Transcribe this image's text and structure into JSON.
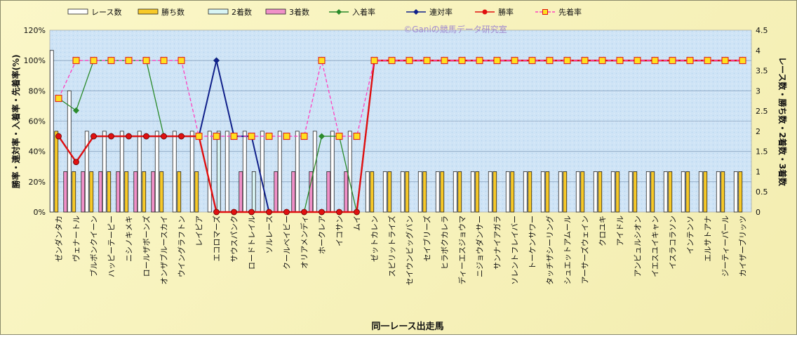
{
  "chart_data": {
    "type": "bar+line",
    "watermark": "©Ganiの競馬データ研究室",
    "xlabel": "同一レース出走馬",
    "ylabel_left": "勝率・連対率・入着率・先着率(%)",
    "ylabel_right": "レース数・勝ち数・2着数・3着数",
    "y_left": {
      "min": 0,
      "max": 120,
      "ticks": [
        "0%",
        "20%",
        "40%",
        "60%",
        "80%",
        "100%",
        "120%"
      ]
    },
    "y_right": {
      "min": 0,
      "max": 4.5,
      "ticks": [
        "0",
        "0.5",
        "1",
        "1.5",
        "2",
        "2.5",
        "3",
        "3.5",
        "4",
        "4.5"
      ]
    },
    "grid": true,
    "legend_position": "top",
    "categories": [
      "ゼンダンタカ",
      "ヴェナートル",
      "ブルボンクイーン",
      "ハッピーテーピー",
      "ニシノキメキ",
      "ロールザボーンズ",
      "オンザブルースカイ",
      "ウイングラフトン",
      "レイピア",
      "エコロマーズ",
      "サウスパンク",
      "ロードトレイル",
      "ソルレース",
      "クールベイビー",
      "オリアメンディ",
      "ホークレア",
      "イコサン",
      "ムイ",
      "ゼットカレン",
      "スピリットライズ",
      "セイウンビッグバン",
      "セイブリーズ",
      "ヒラボクカレラ",
      "ディーエスジョウマ",
      "ニジョウダンサー",
      "サンナイアガラ",
      "ソレントフレイバー",
      "トーケンサワー",
      "タッチザシーリング",
      "シュエットアムール",
      "アーサーズウェイン",
      "クロユキ",
      "アイドル",
      "アンビュルシオン",
      "イエスユイキャン",
      "イスラコラソン",
      "インテンソ",
      "エルサトアナ",
      "ジーティーパール",
      "カイザーブリッツ"
    ],
    "series": [
      {
        "name": "レース数",
        "kind": "bar",
        "axis": "right",
        "color": "#ffffff",
        "values": [
          4,
          3,
          2,
          2,
          2,
          2,
          2,
          2,
          2,
          2,
          2,
          2,
          2,
          2,
          2,
          2,
          2,
          2,
          1,
          1,
          1,
          1,
          1,
          1,
          1,
          1,
          1,
          1,
          1,
          1,
          1,
          1,
          1,
          1,
          1,
          1,
          1,
          1,
          1,
          1
        ]
      },
      {
        "name": "勝ち数",
        "kind": "bar",
        "axis": "right",
        "color": "#f7c928",
        "values": [
          2,
          1,
          1,
          1,
          1,
          1,
          1,
          1,
          1,
          0,
          0,
          0,
          0,
          0,
          0,
          0,
          0,
          0,
          1,
          1,
          1,
          1,
          1,
          1,
          1,
          1,
          1,
          1,
          1,
          1,
          1,
          1,
          1,
          1,
          1,
          1,
          1,
          1,
          1,
          1
        ]
      },
      {
        "name": "2着数",
        "kind": "bar",
        "axis": "right",
        "color": "#d8f4f4",
        "values": [
          0,
          0,
          0,
          0,
          0,
          0,
          0,
          0,
          0,
          2,
          0,
          1,
          0,
          0,
          0,
          0,
          0,
          0,
          0,
          0,
          0,
          0,
          0,
          0,
          0,
          0,
          0,
          0,
          0,
          0,
          0,
          0,
          0,
          0,
          0,
          0,
          0,
          0,
          0,
          0
        ]
      },
      {
        "name": "3着数",
        "kind": "bar",
        "axis": "right",
        "color": "#f090c8",
        "values": [
          1,
          1,
          1,
          1,
          1,
          1,
          0,
          0,
          0,
          0,
          1,
          0,
          1,
          1,
          1,
          1,
          1,
          0,
          0,
          0,
          0,
          0,
          0,
          0,
          0,
          0,
          0,
          0,
          0,
          0,
          0,
          0,
          0,
          0,
          0,
          0,
          0,
          0,
          0,
          0
        ]
      },
      {
        "name": "入着率",
        "kind": "line",
        "axis": "left",
        "color": "#2a8a2a",
        "marker": "diamond",
        "values": [
          75,
          67,
          100,
          100,
          100,
          100,
          50,
          50,
          50,
          100,
          50,
          50,
          0,
          0,
          0,
          50,
          50,
          0,
          100,
          100,
          100,
          100,
          100,
          100,
          100,
          100,
          100,
          100,
          100,
          100,
          100,
          100,
          100,
          100,
          100,
          100,
          100,
          100,
          100,
          100
        ]
      },
      {
        "name": "連対率",
        "kind": "line",
        "axis": "left",
        "color": "#10208a",
        "marker": "diamond",
        "values": [
          50,
          33,
          50,
          50,
          50,
          50,
          50,
          50,
          50,
          100,
          50,
          50,
          0,
          0,
          0,
          0,
          0,
          0,
          100,
          100,
          100,
          100,
          100,
          100,
          100,
          100,
          100,
          100,
          100,
          100,
          100,
          100,
          100,
          100,
          100,
          100,
          100,
          100,
          100,
          100
        ]
      },
      {
        "name": "勝率",
        "kind": "line",
        "axis": "left",
        "color": "#e01010",
        "marker": "circle",
        "values": [
          50,
          33,
          50,
          50,
          50,
          50,
          50,
          50,
          50,
          0,
          0,
          0,
          0,
          0,
          0,
          0,
          0,
          0,
          100,
          100,
          100,
          100,
          100,
          100,
          100,
          100,
          100,
          100,
          100,
          100,
          100,
          100,
          100,
          100,
          100,
          100,
          100,
          100,
          100,
          100
        ]
      },
      {
        "name": "先着率",
        "kind": "line",
        "axis": "left",
        "color": "#ff40c0",
        "marker": "square",
        "dashed": true,
        "values": [
          75,
          100,
          100,
          100,
          100,
          100,
          100,
          100,
          50,
          50,
          50,
          50,
          50,
          50,
          50,
          100,
          50,
          50,
          100,
          100,
          100,
          100,
          100,
          100,
          100,
          100,
          100,
          100,
          100,
          100,
          100,
          100,
          100,
          100,
          100,
          100,
          100,
          100,
          100,
          100
        ]
      }
    ]
  }
}
